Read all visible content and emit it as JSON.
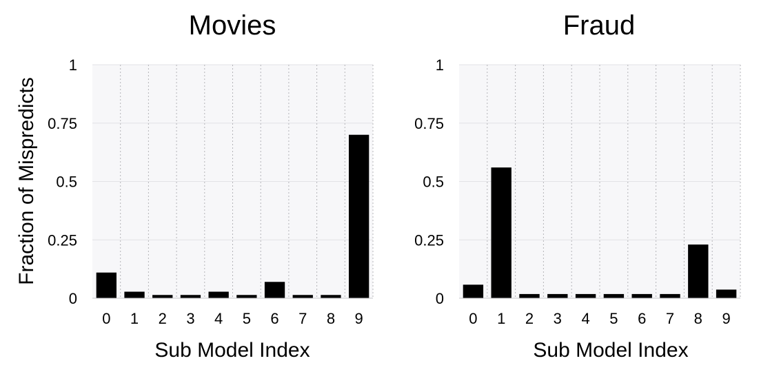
{
  "chart_data": [
    {
      "type": "bar",
      "title": "Movies",
      "xlabel": "Sub Model Index",
      "ylabel": "Fraction of Mispredicts",
      "categories": [
        "0",
        "1",
        "2",
        "3",
        "4",
        "5",
        "6",
        "7",
        "8",
        "9"
      ],
      "values": [
        0.11,
        0.028,
        0.014,
        0.014,
        0.028,
        0.014,
        0.07,
        0.014,
        0.014,
        0.7
      ],
      "ylim": [
        0,
        1
      ],
      "yticks": [
        0,
        0.25,
        0.5,
        0.75,
        1
      ],
      "ytick_labels": [
        "0",
        "0.25",
        "0.5",
        "0.75",
        "1"
      ],
      "grid": true,
      "bar_color": "#000000",
      "plot_background": "#f7f7f9"
    },
    {
      "type": "bar",
      "title": "Fraud",
      "xlabel": "Sub Model Index",
      "ylabel": "",
      "categories": [
        "0",
        "1",
        "2",
        "3",
        "4",
        "5",
        "6",
        "7",
        "8",
        "9"
      ],
      "values": [
        0.058,
        0.56,
        0.018,
        0.018,
        0.018,
        0.018,
        0.018,
        0.018,
        0.23,
        0.037
      ],
      "ylim": [
        0,
        1
      ],
      "yticks": [
        0,
        0.25,
        0.5,
        0.75,
        1
      ],
      "ytick_labels": [
        "0",
        "0.25",
        "0.5",
        "0.75",
        "1"
      ],
      "grid": true,
      "bar_color": "#000000",
      "plot_background": "#f7f7f9"
    }
  ]
}
